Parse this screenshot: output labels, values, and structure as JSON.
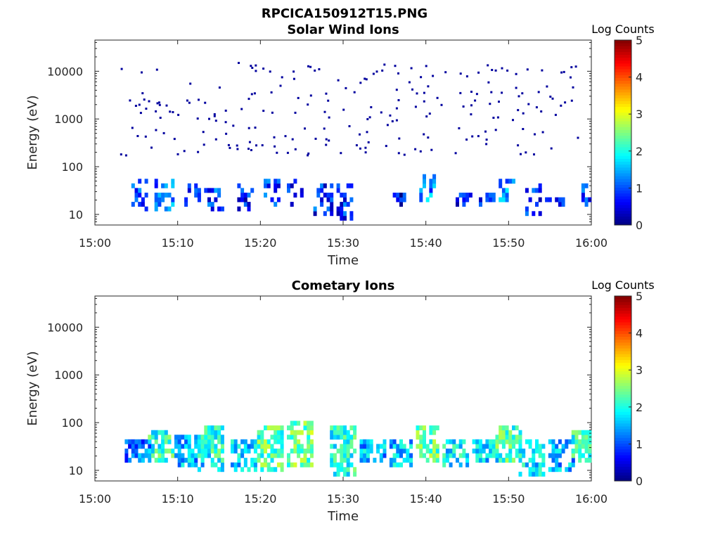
{
  "figure": {
    "title": "RPCICA150912T15.PNG"
  },
  "chart_data": [
    {
      "type": "heatmap",
      "title": "Solar Wind Ions",
      "xlabel": "Time",
      "ylabel": "Energy (eV)",
      "xlim": [
        "15:00",
        "16:00"
      ],
      "xticks": [
        "15:00",
        "15:10",
        "15:20",
        "15:30",
        "15:40",
        "15:50",
        "16:00"
      ],
      "ylim": [
        6,
        45000
      ],
      "yscale": "log",
      "yticks": [
        "10",
        "100",
        "1000",
        "10000"
      ],
      "colorbar": {
        "label": "Log Counts",
        "range": [
          0,
          5
        ],
        "ticks": [
          "0",
          "1",
          "2",
          "3",
          "4",
          "5"
        ]
      },
      "clusters": [
        {
          "t": 5.6,
          "e_lo": 12,
          "e_hi": 55,
          "level": 0.9
        },
        {
          "t": 8.4,
          "e_lo": 12,
          "e_hi": 60,
          "level": 1.2
        },
        {
          "t": 11.8,
          "e_lo": 15,
          "e_hi": 40,
          "level": 1.0
        },
        {
          "t": 14.4,
          "e_lo": 12,
          "e_hi": 35,
          "level": 0.9
        },
        {
          "t": 18.2,
          "e_lo": 12,
          "e_hi": 40,
          "level": 0.7
        },
        {
          "t": 21.4,
          "e_lo": 15,
          "e_hi": 50,
          "level": 0.9
        },
        {
          "t": 24.2,
          "e_lo": 15,
          "e_hi": 55,
          "level": 0.8
        },
        {
          "t": 27.6,
          "e_lo": 10,
          "e_hi": 40,
          "level": 0.8
        },
        {
          "t": 30.2,
          "e_lo": 8,
          "e_hi": 45,
          "level": 0.8
        },
        {
          "t": 36.6,
          "e_lo": 15,
          "e_hi": 30,
          "level": 0.6
        },
        {
          "t": 40.2,
          "e_lo": 18,
          "e_hi": 65,
          "level": 1.3
        },
        {
          "t": 44.8,
          "e_lo": 15,
          "e_hi": 30,
          "level": 0.7
        },
        {
          "t": 47.6,
          "e_lo": 15,
          "e_hi": 30,
          "level": 0.7
        },
        {
          "t": 50.0,
          "e_lo": 18,
          "e_hi": 60,
          "level": 1.3
        },
        {
          "t": 53.0,
          "e_lo": 10,
          "e_hi": 40,
          "level": 0.7
        },
        {
          "t": 55.6,
          "e_lo": 15,
          "e_hi": 25,
          "level": 0.6
        },
        {
          "t": 59.6,
          "e_lo": 15,
          "e_hi": 45,
          "level": 1.0
        }
      ]
    },
    {
      "type": "heatmap",
      "title": "Cometary Ions",
      "xlabel": "Time",
      "ylabel": "Energy (eV)",
      "xlim": [
        "15:00",
        "16:00"
      ],
      "xticks": [
        "15:00",
        "15:10",
        "15:20",
        "15:30",
        "15:40",
        "15:50",
        "16:00"
      ],
      "ylim": [
        6,
        45000
      ],
      "yscale": "log",
      "yticks": [
        "10",
        "100",
        "1000",
        "10000"
      ],
      "colorbar": {
        "label": "Log Counts",
        "range": [
          0,
          5
        ],
        "ticks": [
          "0",
          "1",
          "2",
          "3",
          "4",
          "5"
        ]
      },
      "clusters": [
        {
          "t": 5.2,
          "e_lo": 14,
          "e_hi": 40,
          "level": 1.2
        },
        {
          "t": 8.2,
          "e_lo": 14,
          "e_hi": 75,
          "level": 2.1
        },
        {
          "t": 11.4,
          "e_lo": 12,
          "e_hi": 50,
          "level": 1.5
        },
        {
          "t": 14.2,
          "e_lo": 10,
          "e_hi": 90,
          "level": 2.0
        },
        {
          "t": 17.9,
          "e_lo": 10,
          "e_hi": 45,
          "level": 1.7
        },
        {
          "t": 21.2,
          "e_lo": 10,
          "e_hi": 95,
          "level": 2.3
        },
        {
          "t": 24.8,
          "e_lo": 12,
          "e_hi": 100,
          "level": 2.4
        },
        {
          "t": 30.2,
          "e_lo": 8,
          "e_hi": 80,
          "level": 2.0
        },
        {
          "t": 33.8,
          "e_lo": 14,
          "e_hi": 40,
          "level": 1.5
        },
        {
          "t": 37.0,
          "e_lo": 12,
          "e_hi": 40,
          "level": 1.6
        },
        {
          "t": 40.2,
          "e_lo": 16,
          "e_hi": 85,
          "level": 2.3
        },
        {
          "t": 43.8,
          "e_lo": 12,
          "e_hi": 45,
          "level": 1.8
        },
        {
          "t": 47.4,
          "e_lo": 14,
          "e_hi": 40,
          "level": 1.6
        },
        {
          "t": 50.0,
          "e_lo": 14,
          "e_hi": 85,
          "level": 2.2
        },
        {
          "t": 53.0,
          "e_lo": 8,
          "e_hi": 45,
          "level": 1.8
        },
        {
          "t": 56.4,
          "e_lo": 10,
          "e_hi": 40,
          "level": 1.5
        },
        {
          "t": 59.4,
          "e_lo": 14,
          "e_hi": 70,
          "level": 2.0
        }
      ]
    }
  ]
}
